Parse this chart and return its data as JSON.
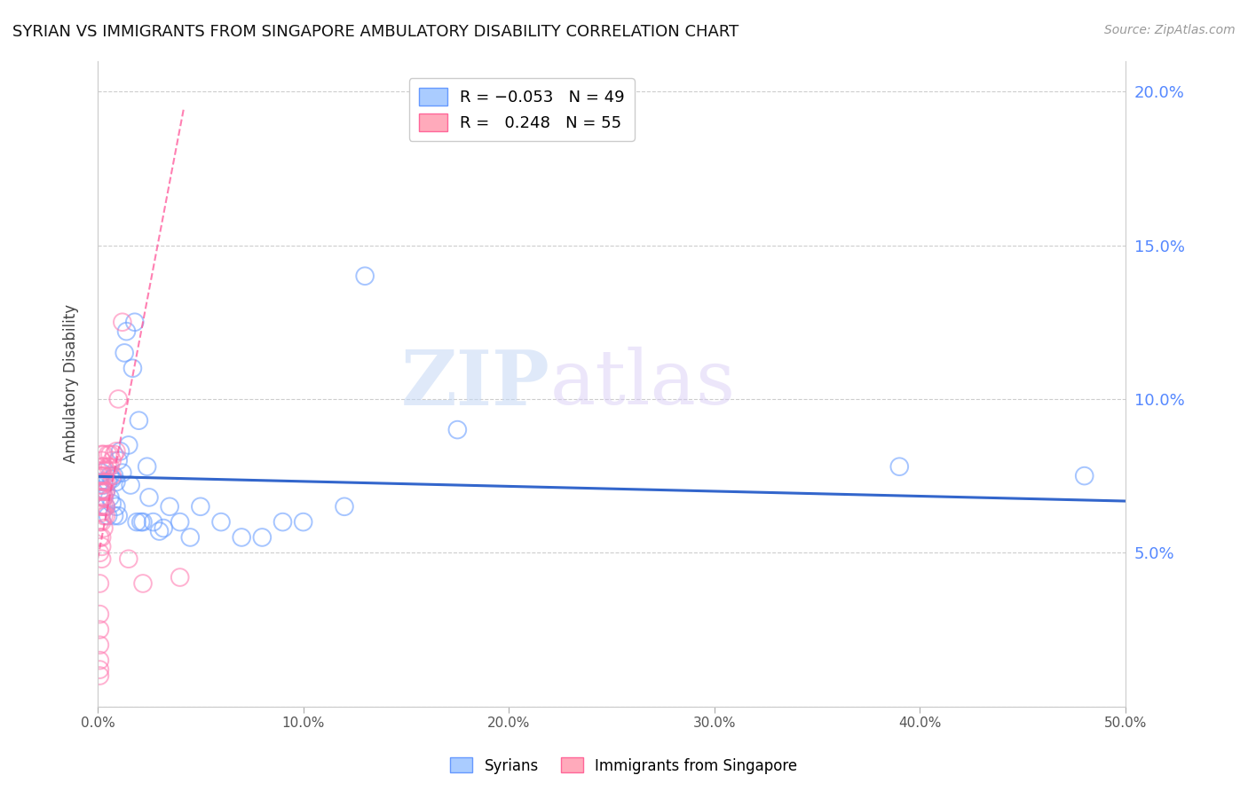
{
  "title": "SYRIAN VS IMMIGRANTS FROM SINGAPORE AMBULATORY DISABILITY CORRELATION CHART",
  "source": "Source: ZipAtlas.com",
  "ylabel": "Ambulatory Disability",
  "watermark_zip": "ZIP",
  "watermark_atlas": "atlas",
  "xlim": [
    0.0,
    0.5
  ],
  "ylim": [
    0.0,
    0.21
  ],
  "x_ticks": [
    0.0,
    0.1,
    0.2,
    0.3,
    0.4,
    0.5
  ],
  "x_tick_labels": [
    "0.0%",
    "10.0%",
    "20.0%",
    "30.0%",
    "40.0%",
    "50.0%"
  ],
  "y_ticks_right": [
    0.05,
    0.1,
    0.15,
    0.2
  ],
  "y_tick_labels_right": [
    "5.0%",
    "10.0%",
    "15.0%",
    "20.0%"
  ],
  "background_color": "#ffffff",
  "grid_color": "#c8c8c8",
  "color_syrians": "#6b9fff",
  "color_singapore": "#ff7eb3",
  "syrians_x": [
    0.001,
    0.002,
    0.003,
    0.003,
    0.004,
    0.004,
    0.005,
    0.005,
    0.006,
    0.006,
    0.007,
    0.007,
    0.008,
    0.008,
    0.009,
    0.009,
    0.01,
    0.01,
    0.011,
    0.012,
    0.013,
    0.014,
    0.015,
    0.016,
    0.017,
    0.018,
    0.019,
    0.02,
    0.021,
    0.022,
    0.024,
    0.025,
    0.027,
    0.03,
    0.032,
    0.035,
    0.04,
    0.045,
    0.05,
    0.06,
    0.07,
    0.08,
    0.09,
    0.1,
    0.12,
    0.13,
    0.175,
    0.39,
    0.48
  ],
  "syrians_y": [
    0.073,
    0.076,
    0.072,
    0.068,
    0.07,
    0.065,
    0.073,
    0.062,
    0.068,
    0.075,
    0.074,
    0.066,
    0.075,
    0.062,
    0.073,
    0.065,
    0.08,
    0.062,
    0.083,
    0.076,
    0.115,
    0.122,
    0.085,
    0.072,
    0.11,
    0.125,
    0.06,
    0.093,
    0.06,
    0.06,
    0.078,
    0.068,
    0.06,
    0.057,
    0.058,
    0.065,
    0.06,
    0.055,
    0.065,
    0.06,
    0.055,
    0.055,
    0.06,
    0.06,
    0.065,
    0.14,
    0.09,
    0.078,
    0.075
  ],
  "singapore_x": [
    0.001,
    0.001,
    0.001,
    0.001,
    0.001,
    0.001,
    0.001,
    0.001,
    0.001,
    0.001,
    0.001,
    0.001,
    0.001,
    0.001,
    0.001,
    0.002,
    0.002,
    0.002,
    0.002,
    0.002,
    0.002,
    0.002,
    0.002,
    0.002,
    0.002,
    0.002,
    0.002,
    0.002,
    0.003,
    0.003,
    0.003,
    0.003,
    0.003,
    0.003,
    0.003,
    0.003,
    0.003,
    0.004,
    0.004,
    0.004,
    0.004,
    0.004,
    0.005,
    0.005,
    0.006,
    0.006,
    0.007,
    0.007,
    0.008,
    0.009,
    0.01,
    0.012,
    0.015,
    0.022,
    0.04
  ],
  "singapore_y": [
    0.01,
    0.012,
    0.015,
    0.02,
    0.025,
    0.03,
    0.04,
    0.05,
    0.055,
    0.06,
    0.065,
    0.068,
    0.07,
    0.072,
    0.075,
    0.048,
    0.052,
    0.055,
    0.06,
    0.063,
    0.065,
    0.068,
    0.07,
    0.072,
    0.075,
    0.078,
    0.08,
    0.082,
    0.058,
    0.062,
    0.065,
    0.068,
    0.07,
    0.073,
    0.075,
    0.078,
    0.082,
    0.062,
    0.065,
    0.07,
    0.073,
    0.077,
    0.078,
    0.082,
    0.078,
    0.082,
    0.075,
    0.08,
    0.082,
    0.083,
    0.1,
    0.125,
    0.048,
    0.04,
    0.042
  ],
  "blue_line_x": [
    0.0,
    0.5
  ],
  "blue_line_y": [
    0.0748,
    0.0668
  ],
  "pink_line_x": [
    0.0,
    0.042
  ],
  "pink_line_y": [
    0.048,
    0.195
  ],
  "blue_line_color": "#3366cc",
  "pink_line_color": "#ff5599"
}
